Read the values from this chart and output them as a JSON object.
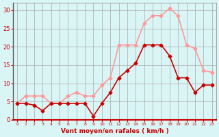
{
  "x": [
    0,
    1,
    2,
    3,
    4,
    5,
    6,
    7,
    8,
    9,
    10,
    11,
    12,
    13,
    14,
    15,
    16,
    17,
    18,
    19,
    20,
    21,
    22,
    23
  ],
  "mean_wind": [
    4.5,
    4.5,
    4.0,
    2.5,
    4.5,
    4.5,
    4.5,
    4.5,
    4.5,
    1.0,
    4.5,
    7.5,
    11.5,
    13.5,
    15.5,
    20.5,
    20.5,
    20.5,
    17.5,
    11.5,
    11.5,
    7.5,
    9.5,
    9.5
  ],
  "gust_wind": [
    4.5,
    6.5,
    6.5,
    6.5,
    4.5,
    4.5,
    6.5,
    7.5,
    6.5,
    6.5,
    9.5,
    11.5,
    20.5,
    20.5,
    20.5,
    26.5,
    28.5,
    28.5,
    30.5,
    28.5,
    20.5,
    19.5,
    13.5,
    13.0
  ],
  "mean_color": "#cc0000",
  "gust_color": "#ff9999",
  "bg_color": "#d9f5f5",
  "grid_color": "#aaaaaa",
  "ylabel_values": [
    0,
    5,
    10,
    15,
    20,
    25,
    30
  ],
  "xlabel": "Vent moyen/en rafales ( km/h )",
  "xlabel_color": "#cc0000",
  "tick_color": "#cc0000",
  "ylim": [
    0,
    32
  ],
  "xlim": [
    -0.5,
    23.5
  ]
}
